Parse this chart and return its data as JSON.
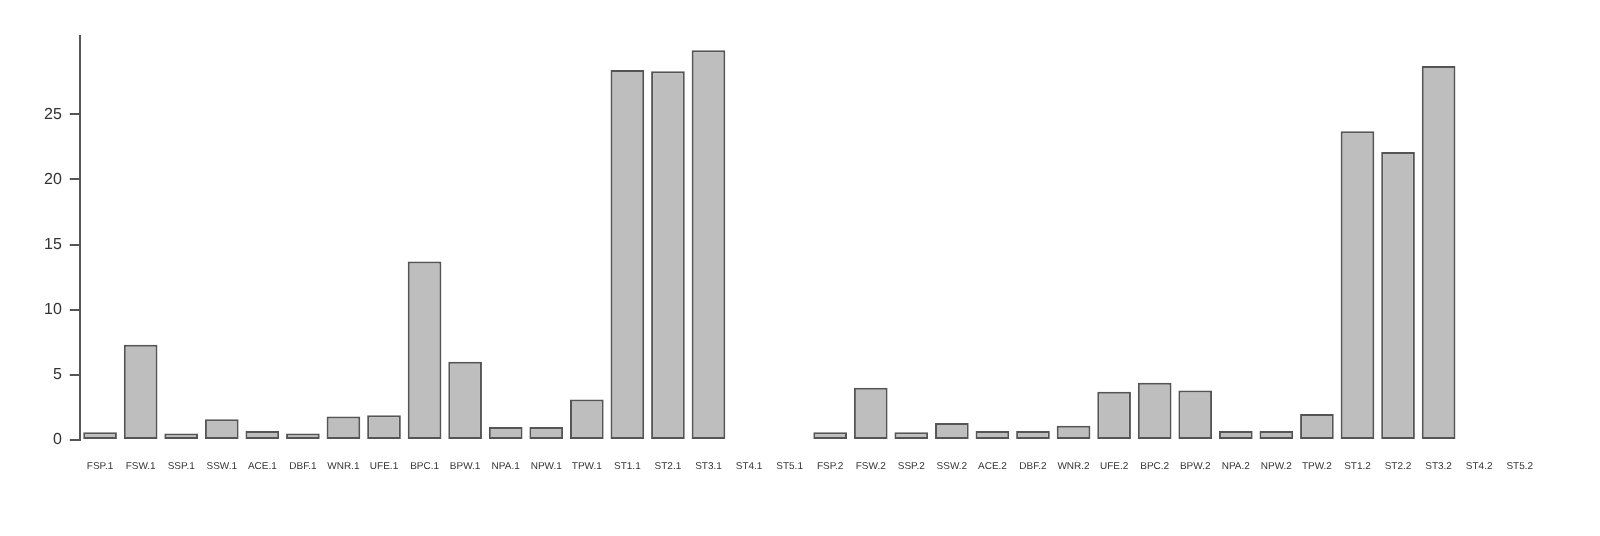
{
  "chart_data": {
    "type": "bar",
    "categories": [
      "FSP.1",
      "FSW.1",
      "SSP.1",
      "SSW.1",
      "ACE.1",
      "DBF.1",
      "WNR.1",
      "UFE.1",
      "BPC.1",
      "BPW.1",
      "NPA.1",
      "NPW.1",
      "TPW.1",
      "ST1.1",
      "ST2.1",
      "ST3.1",
      "ST4.1",
      "ST5.1",
      "FSP.2",
      "FSW.2",
      "SSP.2",
      "SSW.2",
      "ACE.2",
      "DBF.2",
      "WNR.2",
      "UFE.2",
      "BPC.2",
      "BPW.2",
      "NPA.2",
      "NPW.2",
      "TPW.2",
      "ST1.2",
      "ST2.2",
      "ST3.2",
      "ST4.2",
      "ST5.2"
    ],
    "values": [
      0.6,
      7.3,
      0.5,
      1.6,
      0.7,
      0.5,
      1.8,
      1.9,
      13.7,
      6.0,
      1.0,
      1.0,
      3.1,
      28.4,
      28.3,
      29.9,
      0,
      0,
      0.6,
      4.0,
      0.6,
      1.3,
      0.7,
      0.7,
      1.1,
      3.7,
      4.4,
      3.8,
      0.7,
      0.7,
      2.0,
      23.7,
      22.1,
      28.7,
      0,
      0
    ],
    "color": "#bebebe",
    "ylim": [
      0,
      31
    ],
    "yticks": [
      0,
      5,
      10,
      15,
      20,
      25
    ],
    "grid": false,
    "legend": false
  }
}
